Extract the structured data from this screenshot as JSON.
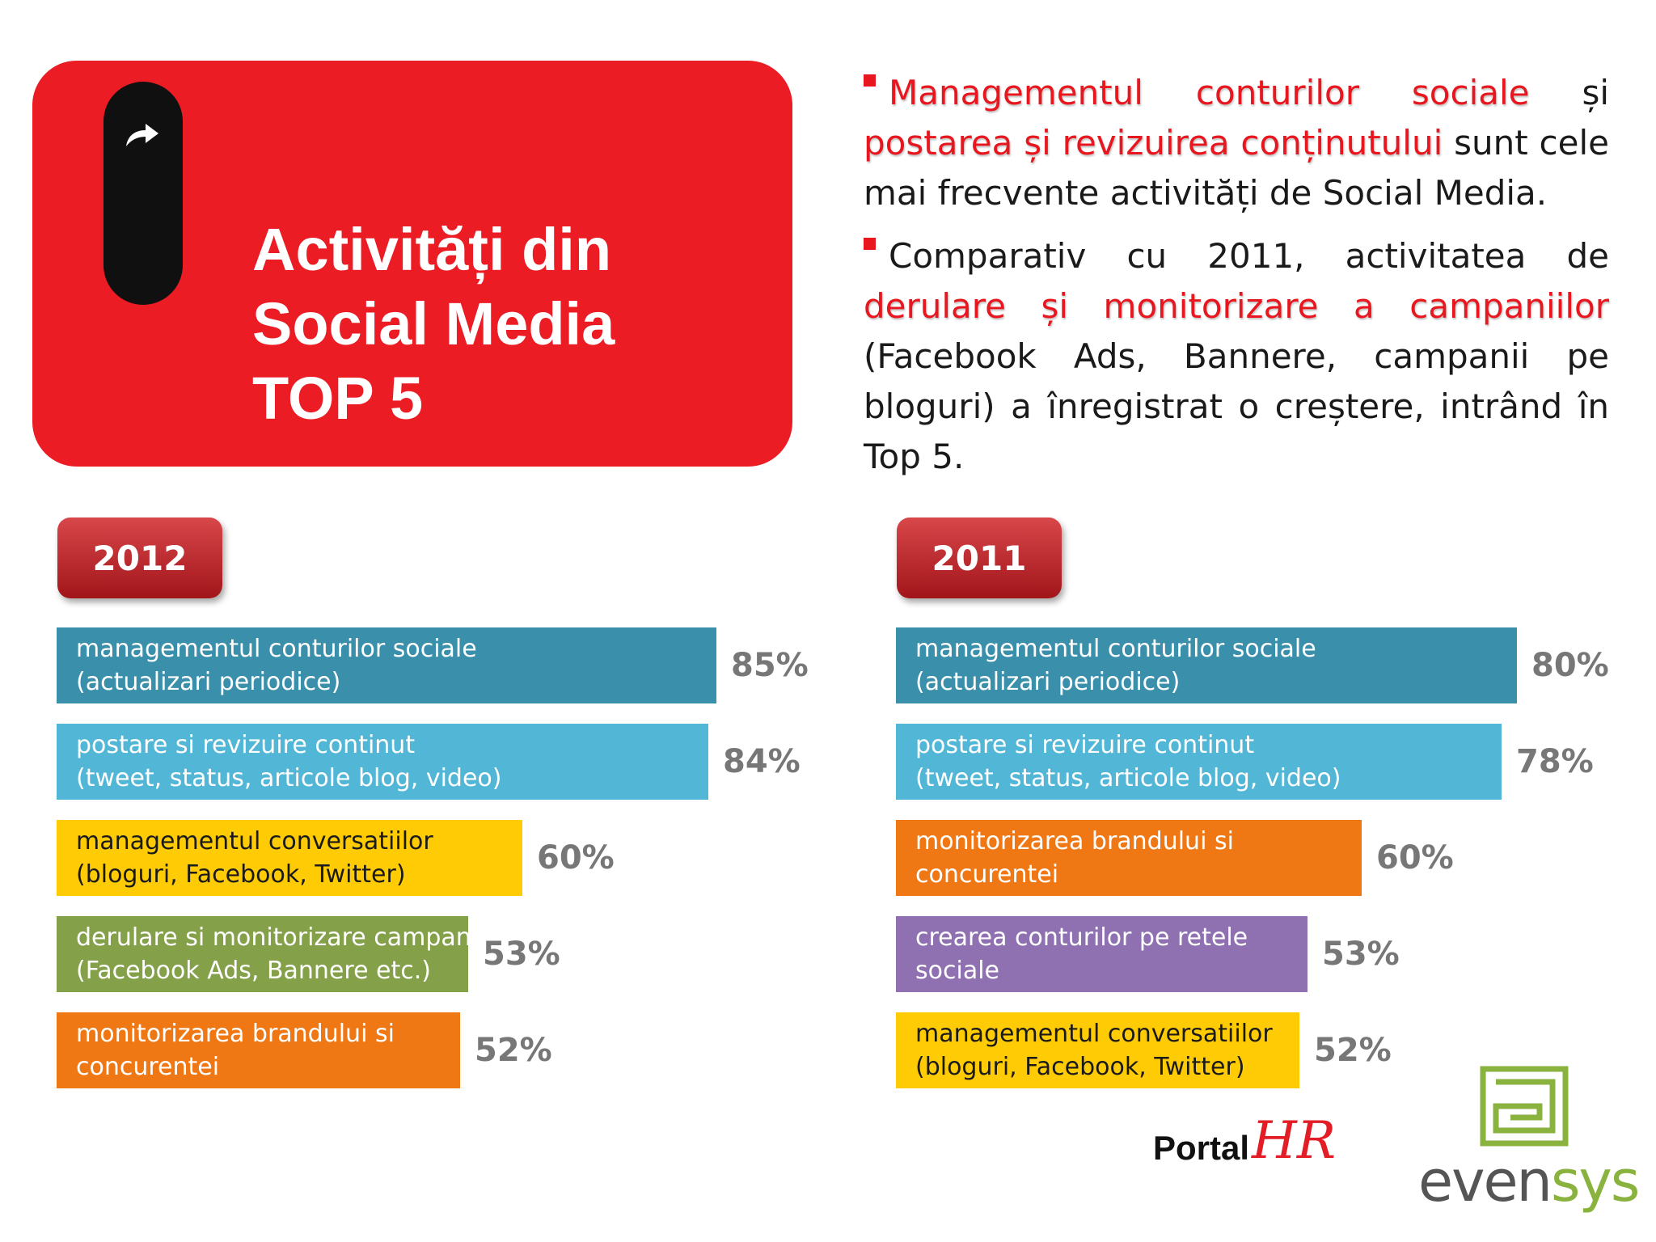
{
  "header": {
    "title_lines": [
      "Activități din",
      "Social Media",
      "TOP 5"
    ],
    "arrow_icon": "share-arrow-icon"
  },
  "bullets": {
    "b1": {
      "highlight1": "Managementul conturilor sociale",
      "text1": " și ",
      "highlight2": "postarea și revizuirea conținutului",
      "text2": " sunt cele mai frecvente activități de Social Media."
    },
    "b2": {
      "text1": "Comparativ cu 2011, activitatea de ",
      "highlight": "derulare și monitorizare a campaniilor",
      "text2": " (Facebook Ads, Bannere, campanii pe bloguri) a înregistrat o creștere, intrând în Top 5."
    }
  },
  "colors": {
    "accent_red": "#ec1c24",
    "teal": "#3a8fab",
    "light_blue": "#52b6d6",
    "yellow": "#fecb04",
    "green": "#84a14a",
    "orange": "#f07814",
    "purple": "#8f71b2"
  },
  "chart_data": [
    {
      "type": "bar",
      "orientation": "horizontal",
      "title": "2012",
      "xlim": [
        0,
        100
      ],
      "bars": [
        {
          "label": [
            "managementul conturilor sociale",
            "(actualizari periodice)"
          ],
          "value": 85,
          "value_label": "85%",
          "color": "#3a8fab"
        },
        {
          "label": [
            "postare si revizuire continut",
            "(tweet, status, articole blog, video)"
          ],
          "value": 84,
          "value_label": "84%",
          "color": "#52b6d6"
        },
        {
          "label": [
            "managementul conversatiilor",
            "(bloguri, Facebook, Twitter)"
          ],
          "value": 60,
          "value_label": "60%",
          "color": "#fecb04"
        },
        {
          "label": [
            "derulare si monitorizare campanii",
            "(Facebook Ads, Bannere etc.)"
          ],
          "value": 53,
          "value_label": "53%",
          "color": "#84a14a"
        },
        {
          "label": [
            "monitorizarea brandului si",
            "concurentei"
          ],
          "value": 52,
          "value_label": "52%",
          "color": "#f07814"
        }
      ]
    },
    {
      "type": "bar",
      "orientation": "horizontal",
      "title": "2011",
      "xlim": [
        0,
        100
      ],
      "bars": [
        {
          "label": [
            "managementul conturilor sociale",
            "(actualizari periodice)"
          ],
          "value": 80,
          "value_label": "80%",
          "color": "#3a8fab"
        },
        {
          "label": [
            "postare si revizuire continut",
            "(tweet, status, articole blog, video)"
          ],
          "value": 78,
          "value_label": "78%",
          "color": "#52b6d6"
        },
        {
          "label": [
            "monitorizarea brandului si",
            "concurentei"
          ],
          "value": 60,
          "value_label": "60%",
          "color": "#f07814"
        },
        {
          "label": [
            "crearea conturilor pe retele",
            "sociale"
          ],
          "value": 53,
          "value_label": "53%",
          "color": "#8f71b2"
        },
        {
          "label": [
            "managementul conversatiilor",
            "(bloguri, Facebook, Twitter)"
          ],
          "value": 52,
          "value_label": "52%",
          "color": "#fecb04"
        }
      ]
    }
  ],
  "logos": {
    "portal": {
      "text": "Portal",
      "mark": "HR",
      "icon": "portal-hr-logo"
    },
    "evensys": {
      "text_a": "even",
      "text_b": "sys",
      "icon": "evensys-logo"
    }
  }
}
